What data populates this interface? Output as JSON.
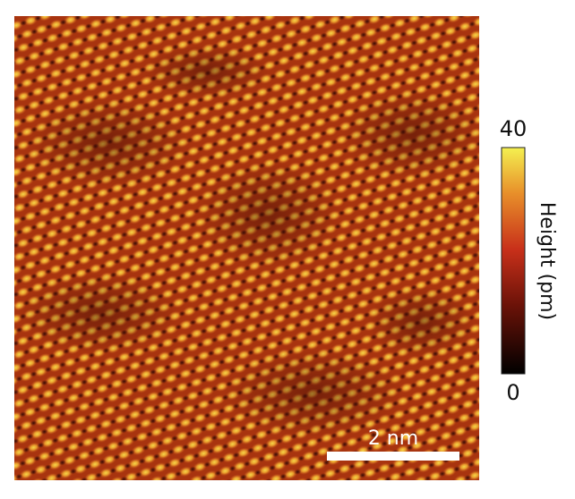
{
  "colorbar": {
    "label": "Height (pm)",
    "ticks": [
      0,
      40
    ]
  },
  "scale_bar": {
    "label": "2 nm"
  }
}
